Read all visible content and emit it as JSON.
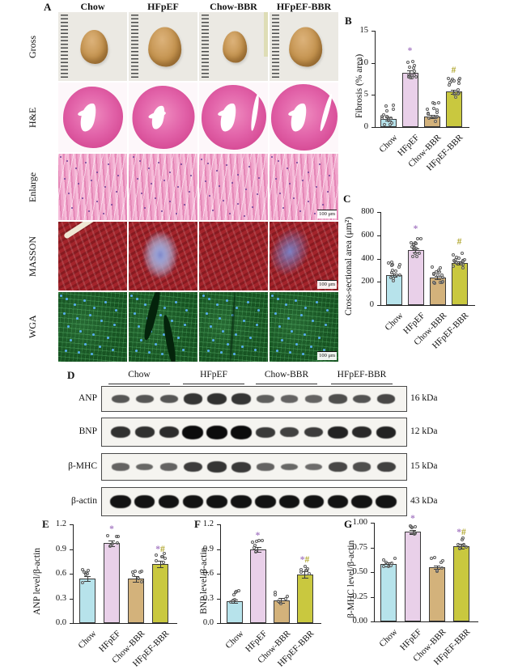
{
  "panel_a": {
    "label": "A",
    "column_headers": [
      "Chow",
      "HFpEF",
      "Chow-BBR",
      "HFpEF-BBR"
    ],
    "row_labels": [
      "Gross",
      "H&E",
      "Enlarge",
      "MASSON",
      "WGA"
    ],
    "scale_bar": "100 μm"
  },
  "panel_d": {
    "label": "D",
    "group_labels": [
      "Chow",
      "HFpEF",
      "Chow-BBR",
      "HFpEF-BBR"
    ],
    "rows": [
      {
        "protein": "ANP",
        "kda": "16 kDa",
        "bands": [
          0.5,
          0.5,
          0.5,
          0.72,
          0.75,
          0.72,
          0.45,
          0.42,
          0.42,
          0.55,
          0.52,
          0.6
        ]
      },
      {
        "protein": "BNP",
        "kda": "12 kDa",
        "bands": [
          0.75,
          0.75,
          0.78,
          1.0,
          1.0,
          1.0,
          0.7,
          0.65,
          0.68,
          0.85,
          0.8,
          0.85
        ]
      },
      {
        "protein": "β-MHC",
        "kda": "15 kDa",
        "bands": [
          0.42,
          0.38,
          0.42,
          0.68,
          0.72,
          0.7,
          0.42,
          0.38,
          0.35,
          0.6,
          0.55,
          0.65
        ]
      },
      {
        "protein": "β-actin",
        "kda": "43 kDa",
        "bands": [
          0.95,
          0.95,
          0.95,
          0.95,
          0.95,
          0.95,
          0.95,
          0.95,
          0.95,
          0.95,
          0.95,
          0.95
        ]
      }
    ]
  },
  "styles": {
    "bar_colors": [
      "#b7e3eb",
      "#e9d0e9",
      "#d3b27b",
      "#c9c83f"
    ],
    "star_color": "#a97fc5",
    "hash_color": "#b0a62e"
  },
  "chart_data": [
    {
      "id": "B",
      "panel_label": "B",
      "type": "bar",
      "ylabel": "Fibrosis (% area)",
      "categories": [
        "Chow",
        "HFpEF",
        "Chow-BBR",
        "HFpEF-BBR"
      ],
      "values": [
        1.3,
        8.5,
        1.7,
        5.5
      ],
      "errors": [
        0.2,
        0.35,
        0.2,
        0.3
      ],
      "ylim": [
        0,
        15
      ],
      "ytick_labels": [
        "0",
        "5",
        "10",
        "15"
      ],
      "significance": [
        "",
        "*",
        "",
        "#"
      ],
      "n_dots": 14
    },
    {
      "id": "C",
      "panel_label": "C",
      "type": "bar",
      "ylabel": "Cross-sectional area (μm²)",
      "categories": [
        "Chow",
        "HFpEF",
        "Chow-BBR",
        "HFpEF-BBR"
      ],
      "values": [
        260,
        470,
        240,
        360
      ],
      "errors": [
        12,
        18,
        12,
        14
      ],
      "ylim": [
        0,
        800
      ],
      "ytick_labels": [
        "0",
        "200",
        "400",
        "600",
        "800"
      ],
      "significance": [
        "",
        "*",
        "",
        "#"
      ],
      "n_dots": 15
    },
    {
      "id": "E",
      "panel_label": "E",
      "type": "bar",
      "ylabel": "ANP level/β-actin",
      "categories": [
        "Chow",
        "HFpEF",
        "Chow-BBR",
        "HFpEF-BBR"
      ],
      "values": [
        0.54,
        0.97,
        0.54,
        0.72
      ],
      "errors": [
        0.03,
        0.035,
        0.035,
        0.04
      ],
      "ylim": [
        0,
        1.2
      ],
      "ytick_labels": [
        "0.0",
        "0.3",
        "0.6",
        "0.9",
        "1.2"
      ],
      "significance": [
        "",
        "*",
        "",
        "*#"
      ],
      "n_dots": 7
    },
    {
      "id": "F",
      "panel_label": "F",
      "type": "bar",
      "ylabel": "BNP level/β-actin",
      "categories": [
        "Chow",
        "HFpEF",
        "Chow-BBR",
        "HFpEF-BBR"
      ],
      "values": [
        0.27,
        0.9,
        0.28,
        0.59
      ],
      "errors": [
        0.02,
        0.03,
        0.03,
        0.04
      ],
      "ylim": [
        0,
        1.2
      ],
      "ytick_labels": [
        "0.0",
        "0.3",
        "0.6",
        "0.9",
        "1.2"
      ],
      "significance": [
        "",
        "*",
        "",
        "*#"
      ],
      "n_dots": 7
    },
    {
      "id": "G",
      "panel_label": "G",
      "type": "bar",
      "ylabel": "β-MHC level/β-actin",
      "categories": [
        "Chow",
        "HFpEF",
        "Chow-BBR",
        "HFpEF-BBR"
      ],
      "values": [
        0.58,
        0.91,
        0.55,
        0.76
      ],
      "errors": [
        0.02,
        0.02,
        0.02,
        0.025
      ],
      "ylim": [
        0,
        1.0
      ],
      "ytick_labels": [
        "0.00",
        "0.25",
        "0.50",
        "0.75",
        "1.00"
      ],
      "significance": [
        "",
        "*",
        "",
        "*#"
      ],
      "n_dots": 7
    }
  ]
}
